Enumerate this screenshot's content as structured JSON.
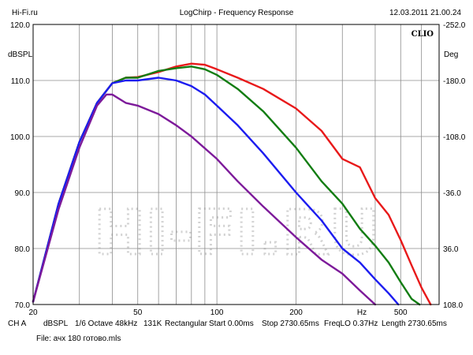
{
  "header": {
    "site": "Hi-Fi.ru",
    "title": "LogChirp - Frequency Response",
    "datetime": "12.03.2011 21.00.24"
  },
  "watermark": "HI-FI.RU",
  "brand": "CLIO",
  "chart_data": {
    "type": "line",
    "title": "LogChirp - Frequency Response",
    "ylabel": "dBSPL",
    "ylabel_right": "Deg",
    "xunit": "Hz",
    "xscale": "log",
    "xlim": [
      20,
      700
    ],
    "ylim": [
      70,
      120
    ],
    "ylim_right": [
      -252,
      108
    ],
    "grid": true,
    "xticks": [
      {
        "value": 20,
        "label": "20"
      },
      {
        "value": 50,
        "label": "50"
      },
      {
        "value": 100,
        "label": "100"
      },
      {
        "value": 200,
        "label": "200"
      },
      {
        "value": 500,
        "label": "500"
      }
    ],
    "yticks": [
      {
        "value": 70,
        "label": "70.0"
      },
      {
        "value": 80,
        "label": "80.0"
      },
      {
        "value": 90,
        "label": "90.0"
      },
      {
        "value": 100,
        "label": "100.0"
      },
      {
        "value": 110,
        "label": "110.0"
      },
      {
        "value": 120,
        "label": "120.0"
      }
    ],
    "yticks_right": [
      {
        "value": 108,
        "label": "108.0"
      },
      {
        "value": 36,
        "label": "36.0"
      },
      {
        "value": -36,
        "label": "-36.0"
      },
      {
        "value": -108,
        "label": "-108.0"
      },
      {
        "value": -180,
        "label": "-180.0"
      },
      {
        "value": -252,
        "label": "-252.0"
      }
    ],
    "series": [
      {
        "color": "#e8191a",
        "x": [
          20,
          25,
          30,
          35,
          40,
          45,
          50,
          60,
          70,
          80,
          90,
          100,
          120,
          150,
          200,
          250,
          300,
          350,
          400,
          450,
          500,
          550,
          600,
          650
        ],
        "y": [
          70.5,
          88,
          99,
          106,
          109.5,
          110.5,
          110.6,
          111.5,
          112.5,
          113,
          112.8,
          112,
          110.5,
          108.5,
          105,
          101,
          96,
          94.5,
          89,
          86,
          81.5,
          77,
          73,
          70
        ]
      },
      {
        "color": "#127d12",
        "x": [
          20,
          25,
          30,
          35,
          40,
          45,
          50,
          60,
          70,
          80,
          90,
          100,
          120,
          150,
          200,
          250,
          300,
          350,
          400,
          450,
          500,
          550,
          590
        ],
        "y": [
          70.5,
          88,
          99,
          106,
          109.5,
          110.5,
          110.5,
          111.7,
          112.2,
          112.5,
          112,
          111,
          108.5,
          104.5,
          98,
          92,
          88,
          83.5,
          80.5,
          77.5,
          74,
          71,
          70
        ]
      },
      {
        "color": "#1c1cf0",
        "x": [
          20,
          25,
          30,
          35,
          40,
          45,
          50,
          60,
          70,
          80,
          90,
          100,
          120,
          150,
          200,
          250,
          300,
          350,
          400,
          450,
          490
        ],
        "y": [
          70.5,
          88,
          99,
          106,
          109.5,
          110,
          110,
          110.5,
          110,
          109,
          107.5,
          105.5,
          102,
          97,
          90,
          85,
          80,
          77.5,
          74.5,
          72,
          70
        ]
      },
      {
        "color": "#7d1a9a",
        "x": [
          20,
          25,
          30,
          35,
          38,
          40,
          45,
          50,
          60,
          70,
          80,
          100,
          120,
          150,
          200,
          250,
          300,
          350,
          400
        ],
        "y": [
          70.5,
          87,
          98,
          105.5,
          107.5,
          107.5,
          106,
          105.5,
          104,
          102,
          100,
          96,
          92,
          87.5,
          82,
          78,
          75.5,
          72.5,
          70
        ]
      }
    ]
  },
  "footer": {
    "channel": "CH A",
    "unit": "dBSPL",
    "smoothing": "1/6 Octave",
    "rate": "48kHz",
    "size": "131K",
    "window": "Rectangular",
    "start": "Start 0.00ms",
    "stop": "Stop 2730.65ms",
    "freqlo": "FreqLO 0.37Hz",
    "length": "Length 2730.65ms",
    "file": "File: ачх 180 готово.mls"
  }
}
